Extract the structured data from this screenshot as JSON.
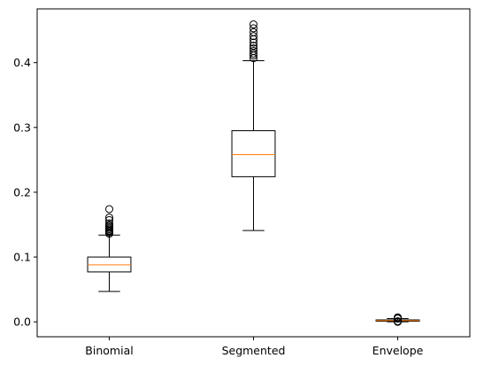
{
  "chart_data": {
    "type": "boxplot",
    "title": "",
    "xlabel": "",
    "ylabel": "",
    "ylim": [
      -0.023,
      0.483
    ],
    "yticks": [
      0.0,
      0.1,
      0.2,
      0.3,
      0.4
    ],
    "ytick_labels": [
      "0.0",
      "0.1",
      "0.2",
      "0.3",
      "0.4"
    ],
    "grid": false,
    "median_color": "#ff7f0e",
    "categories": [
      "Binomial",
      "Segmented",
      "Envelope"
    ],
    "boxes": [
      {
        "label": "Binomial",
        "whisker_low": 0.047,
        "q1": 0.077,
        "median": 0.088,
        "q3": 0.1,
        "whisker_high": 0.134,
        "fliers": [
          0.136,
          0.138,
          0.14,
          0.141,
          0.143,
          0.145,
          0.147,
          0.149,
          0.152,
          0.157,
          0.161,
          0.174
        ]
      },
      {
        "label": "Segmented",
        "whisker_low": 0.141,
        "q1": 0.224,
        "median": 0.258,
        "q3": 0.295,
        "whisker_high": 0.403,
        "fliers": [
          0.407,
          0.411,
          0.414,
          0.418,
          0.422,
          0.426,
          0.431,
          0.436,
          0.441,
          0.447,
          0.453,
          0.459
        ]
      },
      {
        "label": "Envelope",
        "whisker_low": 0.0,
        "q1": 0.001,
        "median": 0.002,
        "q3": 0.003,
        "whisker_high": 0.005,
        "fliers": [
          0.0,
          0.001,
          0.005,
          0.006,
          0.007
        ]
      }
    ]
  }
}
